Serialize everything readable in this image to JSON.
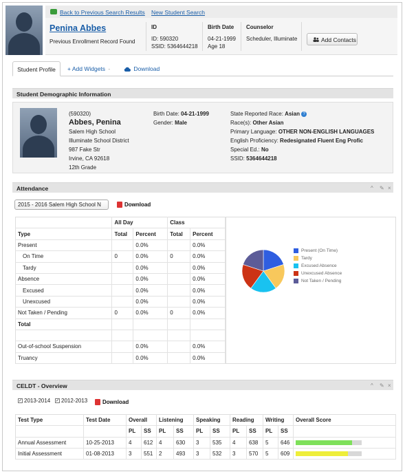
{
  "header": {
    "back_link": "Back to Previous Search Results",
    "new_search_link": "New Student Search",
    "student_name": "Penina Abbes",
    "enrollment_note": "Previous Enrollment Record Found",
    "id_label": "ID",
    "id_value": "ID: 590320",
    "ssid_value": "SSID: 5364644218",
    "birth_label": "Birth Date",
    "birth_value": "04-21-1999",
    "age_value": "Age 18",
    "counselor_label": "Counselor",
    "counselor_value": "Scheduler, Illuminate",
    "add_contacts": "Add Contacts"
  },
  "tabs": {
    "profile": "Student Profile",
    "add_widgets": "+ Add Widgets",
    "add_widgets_caret": "-",
    "download": "Download"
  },
  "demographic": {
    "title": "Student Demographic Information",
    "id_line": "(590320)",
    "name": "Abbes, Penina",
    "school": "Salem High School",
    "district": "Illuminate School District",
    "street": "987 Fake Str",
    "city": "Irvine, CA 92618",
    "grade": "12th Grade",
    "birth_label": "Birth Date:",
    "birth_value": "04-21-1999",
    "gender_label": "Gender:",
    "gender_value": "Male",
    "race_label": "State Reported Race:",
    "race_value": "Asian",
    "races_label": "Race(s):",
    "races_value": "Other Asian",
    "lang_label": "Primary Language:",
    "lang_value": "OTHER NON-ENGLISH LANGUAGES",
    "prof_label": "English Proficiency:",
    "prof_value": "Redesignated Fluent Eng Profic",
    "sped_label": "Special Ed.:",
    "sped_value": "No",
    "ssid_label": "SSID:",
    "ssid_value": "5364644218"
  },
  "attendance": {
    "title": "Attendance",
    "year_select": "2015 - 2016 Salem High School N",
    "download": "Download",
    "group_allday": "All Day",
    "group_class": "Class",
    "col_type": "Type",
    "col_total": "Total",
    "col_percent": "Percent",
    "rows": [
      {
        "type": "Present",
        "d_total": "",
        "d_pct": "0.0%",
        "c_total": "",
        "c_pct": "0.0%",
        "indent": false,
        "bold": false
      },
      {
        "type": "On Time",
        "d_total": "0",
        "d_pct": "0.0%",
        "c_total": "0",
        "c_pct": "0.0%",
        "indent": true,
        "bold": false
      },
      {
        "type": "Tardy",
        "d_total": "",
        "d_pct": "0.0%",
        "c_total": "",
        "c_pct": "0.0%",
        "indent": true,
        "bold": false
      },
      {
        "type": "Absence",
        "d_total": "",
        "d_pct": "0.0%",
        "c_total": "",
        "c_pct": "0.0%",
        "indent": false,
        "bold": false
      },
      {
        "type": "Excused",
        "d_total": "",
        "d_pct": "0.0%",
        "c_total": "",
        "c_pct": "0.0%",
        "indent": true,
        "bold": false
      },
      {
        "type": "Unexcused",
        "d_total": "",
        "d_pct": "0.0%",
        "c_total": "",
        "c_pct": "0.0%",
        "indent": true,
        "bold": false
      },
      {
        "type": "Not Taken / Pending",
        "d_total": "0",
        "d_pct": "0.0%",
        "c_total": "0",
        "c_pct": "0.0%",
        "indent": false,
        "bold": false
      },
      {
        "type": "Total",
        "d_total": "",
        "d_pct": "",
        "c_total": "",
        "c_pct": "",
        "indent": false,
        "bold": true
      },
      {
        "type": "",
        "d_total": "",
        "d_pct": "",
        "c_total": "",
        "c_pct": "",
        "indent": false,
        "bold": false
      },
      {
        "type": "Out-of-school Suspension",
        "d_total": "",
        "d_pct": "0.0%",
        "c_total": "",
        "c_pct": "0.0%",
        "indent": false,
        "bold": false
      },
      {
        "type": "Truancy",
        "d_total": "",
        "d_pct": "0.0%",
        "c_total": "",
        "c_pct": "0.0%",
        "indent": false,
        "bold": false
      }
    ]
  },
  "pie": {
    "slices": [
      {
        "label": "Present (On Time)",
        "value": 1,
        "color": "#2f5ee0"
      },
      {
        "label": "Tardy",
        "value": 1,
        "color": "#f8c85c"
      },
      {
        "label": "Excused Absence",
        "value": 1,
        "color": "#19c2f0"
      },
      {
        "label": "Unexcused Absence",
        "value": 1,
        "color": "#cc3315"
      },
      {
        "label": "Not Taken / Pending",
        "value": 1,
        "color": "#5c5c98"
      }
    ]
  },
  "celdt": {
    "title": "CELDT - Overview",
    "filters": [
      "2013-2014",
      "2012-2013"
    ],
    "download": "Download",
    "cols": {
      "test_type": "Test Type",
      "test_date": "Test Date",
      "overall": "Overall",
      "listening": "Listening",
      "speaking": "Speaking",
      "reading": "Reading",
      "writing": "Writing",
      "overall_score": "Overall Score",
      "pl": "PL",
      "ss": "SS"
    },
    "rows": [
      {
        "type": "Annual Assessment",
        "date": "10-25-2013",
        "o_pl": "4",
        "o_ss": "612",
        "l_pl": "4",
        "l_ss": "630",
        "s_pl": "3",
        "s_ss": "535",
        "r_pl": "4",
        "r_ss": "638",
        "w_pl": "5",
        "w_ss": "646",
        "bar_fraction": 0.85,
        "bar_color": "#7ee05a"
      },
      {
        "type": "Initial Assessment",
        "date": "01-08-2013",
        "o_pl": "3",
        "o_ss": "551",
        "l_pl": "2",
        "l_ss": "493",
        "s_pl": "3",
        "s_ss": "532",
        "r_pl": "3",
        "r_ss": "570",
        "w_pl": "5",
        "w_ss": "609",
        "bar_fraction": 0.79,
        "bar_color": "#eeee3a"
      }
    ]
  }
}
